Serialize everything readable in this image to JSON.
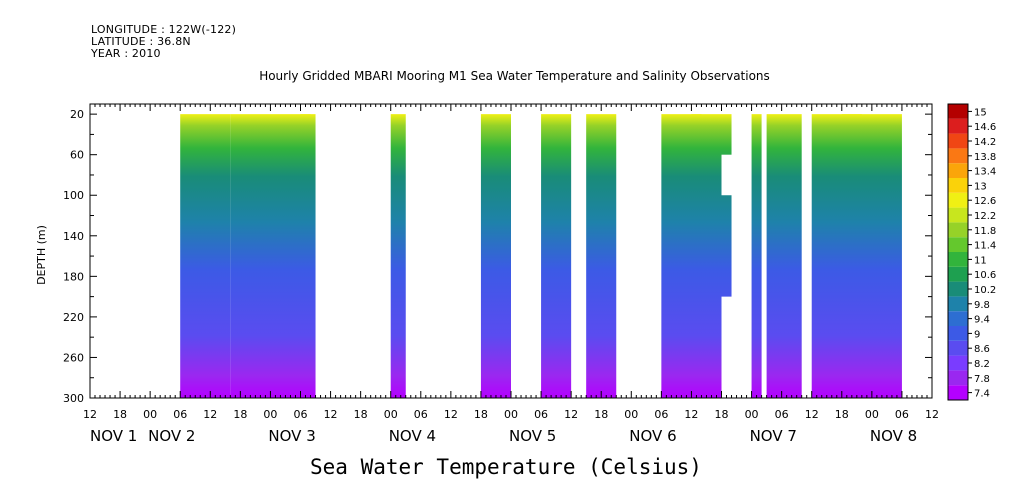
{
  "header": {
    "longitude": "LONGITUDE : 122W(-122)",
    "latitude": "LATITUDE : 36.8N",
    "year": "YEAR : 2010"
  },
  "chart_data": {
    "type": "heatmap",
    "title": "Hourly Gridded MBARI Mooring M1 Sea Water Temperature and Salinity Observations",
    "xlabel": "",
    "ylabel": "DEPTH (m)",
    "colorbar_label": "Sea Water Temperature (Celsius)",
    "x_hour_ticks": [
      "12",
      "18",
      "00",
      "06",
      "12",
      "18",
      "00",
      "06",
      "12",
      "18",
      "00",
      "06",
      "12",
      "18",
      "00",
      "06",
      "12",
      "18",
      "00",
      "06",
      "12",
      "18",
      "00",
      "06",
      "12",
      "18",
      "00",
      "06",
      "12"
    ],
    "x_day_labels": [
      "NOV 1",
      "NOV 2",
      "NOV 3",
      "NOV 4",
      "NOV 5",
      "NOV 6",
      "NOV 7",
      "NOV 8"
    ],
    "xlim_hours_from_nov1_00": [
      12,
      180
    ],
    "y_ticks": [
      20,
      60,
      100,
      140,
      180,
      220,
      260,
      300
    ],
    "ylim": [
      300,
      10
    ],
    "colorbar_levels": [
      7.4,
      7.8,
      8.2,
      8.6,
      9,
      9.4,
      9.8,
      10.2,
      10.6,
      11,
      11.4,
      11.8,
      12.2,
      12.6,
      13,
      13.4,
      13.8,
      14.2,
      14.6,
      15
    ],
    "colors": [
      "#b400ff",
      "#9a28f0",
      "#7a3cff",
      "#5a4cf0",
      "#3c5ae6",
      "#2d6ed2",
      "#1e82aa",
      "#198c78",
      "#1ea050",
      "#32b43c",
      "#64c82d",
      "#96d228",
      "#c8e61e",
      "#f0f014",
      "#fad20a",
      "#faa50a",
      "#fa7814",
      "#f04614",
      "#dc1e1e",
      "#b40000"
    ],
    "data_blocks_hours": [
      [
        30,
        40
      ],
      [
        40,
        56
      ],
      [
        54,
        57
      ],
      [
        72,
        75
      ],
      [
        90,
        96
      ],
      [
        102,
        108
      ],
      [
        111,
        117
      ],
      [
        126,
        134
      ],
      [
        132,
        140
      ],
      [
        144,
        146
      ],
      [
        147,
        154
      ],
      [
        156,
        166
      ],
      [
        162,
        174
      ]
    ],
    "data_blocks_hours_note_removed": ""
  }
}
